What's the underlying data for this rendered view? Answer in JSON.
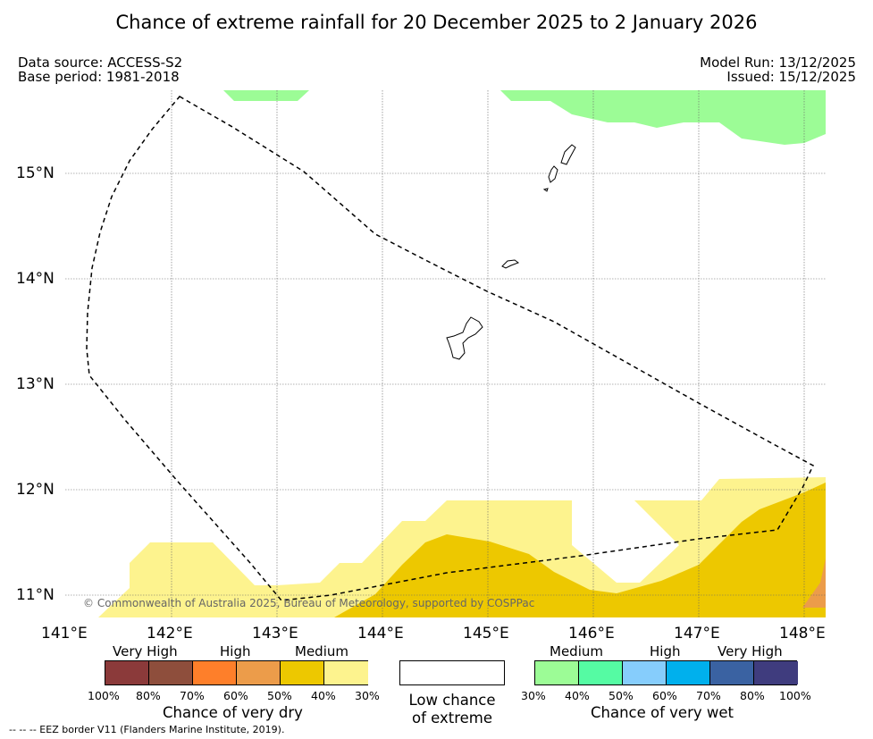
{
  "title": "Chance of extreme rainfall for 20 December 2025 to 2 January 2026",
  "meta": {
    "data_source": "Data source: ACCESS-S2",
    "base_period": "Base period: 1981-2018",
    "model_run": "Model Run: 13/12/2025",
    "issued": "Issued: 15/12/2025"
  },
  "map": {
    "copyright": "© Commonwealth of Australia 2025, Bureau of Meteorology, supported by COSPPac",
    "lon_labels": [
      "141°E",
      "142°E",
      "143°E",
      "144°E",
      "145°E",
      "146°E",
      "147°E",
      "148°E"
    ],
    "lat_labels": [
      "15°N",
      "14°N",
      "13°N",
      "12°N",
      "11°N"
    ],
    "lon_range": [
      141.0,
      148.2
    ],
    "lat_range": [
      10.8,
      15.8
    ]
  },
  "legend": {
    "dry": {
      "categories": [
        "Very High",
        "High",
        "Medium"
      ],
      "colors": [
        "#8b3a3a",
        "#8e4e3c",
        "#fe7f2a",
        "#ec9c4a",
        "#edc800",
        "#fdf38e"
      ],
      "ticks": [
        "100%",
        "80%",
        "70%",
        "60%",
        "50%",
        "40%",
        "30%"
      ],
      "caption": "Chance of very dry"
    },
    "low": {
      "line1": "Low chance",
      "line2": "of extreme",
      "color": "#ffffff"
    },
    "wet": {
      "categories": [
        "Medium",
        "High",
        "Very High"
      ],
      "colors": [
        "#9cfc96",
        "#55fba3",
        "#86cdfc",
        "#00b0ed",
        "#3a62a2",
        "#3f3c7e"
      ],
      "ticks": [
        "30%",
        "40%",
        "50%",
        "60%",
        "70%",
        "80%",
        "100%"
      ],
      "caption": "Chance of very wet"
    }
  },
  "footer": "-- -- -- EEZ border V11 (Flanders Marine Institute, 2019)."
}
